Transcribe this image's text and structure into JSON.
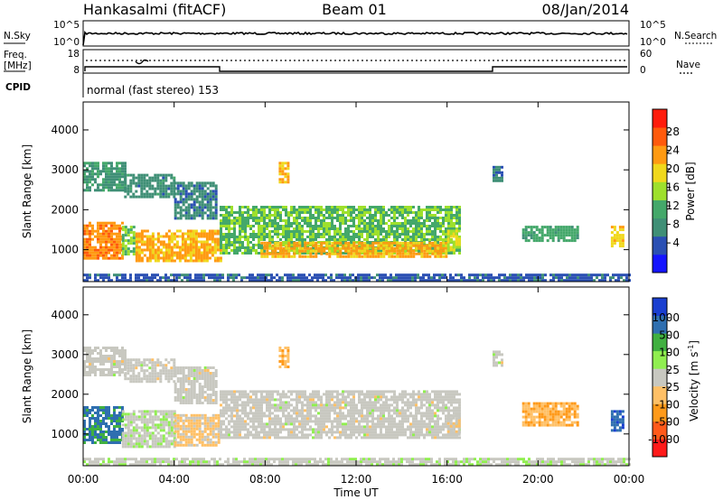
{
  "header": {
    "station": "Hankasalmi (fitACF)",
    "beam": "Beam 01",
    "date": "08/Jan/2014"
  },
  "noise_panel": {
    "left_label": "N.Sky",
    "left_ticks": [
      "10^5",
      "10^0"
    ],
    "right_label": "N.Search",
    "right_ticks": [
      "10^5",
      "10^0"
    ]
  },
  "freq_panel": {
    "left_label_1": "Freq.",
    "left_label_2": "[MHz]",
    "left_ticks": [
      "18",
      "8"
    ],
    "right_label": "Nave",
    "right_ticks": [
      "60",
      "0"
    ]
  },
  "cpid": {
    "label": "CPID",
    "text": "normal (fast stereo) 153"
  },
  "axes": {
    "ylabel": "Slant Range [km]",
    "xlabel": "Time UT"
  },
  "colors": {
    "power_scale": [
      "#1414ff",
      "#2a4fb3",
      "#3f8f76",
      "#44a86a",
      "#9ee02c",
      "#f0d81c",
      "#ff9a12",
      "#ff5a0c",
      "#ff1c0c"
    ],
    "velocity_scale": [
      "#ff1a1a",
      "#ff5a1a",
      "#ff9a1a",
      "#ffc066",
      "#c8c8c0",
      "#90ee50",
      "#40b040",
      "#2f6fb0",
      "#1a3fd0"
    ]
  },
  "chart_data": [
    {
      "type": "heatmap",
      "name": "power_panel",
      "colorbar_label": "Power [dB]",
      "colorbar_ticks": [
        "28",
        "24",
        "20",
        "16",
        "12",
        "8",
        "4"
      ],
      "colorbar_range": [
        0,
        32
      ],
      "x": {
        "label": "Time UT",
        "range_hours": [
          0,
          24
        ],
        "ticks": [
          "00:00",
          "04:00",
          "08:00",
          "12:00",
          "16:00",
          "20:00",
          "00:00"
        ]
      },
      "y": {
        "label": "Slant Range [km]",
        "range": [
          200,
          4700
        ],
        "ticks": [
          "1000",
          "2000",
          "3000",
          "4000"
        ]
      },
      "regions": [
        {
          "t0": 0.0,
          "t1": 1.8,
          "r0": 2500,
          "r1": 3200,
          "value": 10
        },
        {
          "t0": 1.8,
          "t1": 4.0,
          "r0": 2300,
          "r1": 2900,
          "value": 9
        },
        {
          "t0": 4.0,
          "t1": 5.8,
          "r0": 1800,
          "r1": 2700,
          "value": 8
        },
        {
          "t0": 0.0,
          "t1": 1.7,
          "r0": 800,
          "r1": 1700,
          "value": 24
        },
        {
          "t0": 1.7,
          "t1": 2.3,
          "r0": 900,
          "r1": 1600,
          "value": 14
        },
        {
          "t0": 2.3,
          "t1": 6.0,
          "r0": 700,
          "r1": 1500,
          "value": 22
        },
        {
          "t0": 6.0,
          "t1": 16.5,
          "r0": 900,
          "r1": 2100,
          "value": 14
        },
        {
          "t0": 7.8,
          "t1": 16.0,
          "r0": 850,
          "r1": 1200,
          "value": 22
        },
        {
          "t0": 8.6,
          "t1": 9.0,
          "r0": 2700,
          "r1": 3200,
          "value": 22
        },
        {
          "t0": 16.0,
          "t1": 16.5,
          "r0": 1000,
          "r1": 1500,
          "value": 18
        },
        {
          "t0": 18.0,
          "t1": 18.4,
          "r0": 2700,
          "r1": 3100,
          "value": 8
        },
        {
          "t0": 19.3,
          "t1": 21.8,
          "r0": 1200,
          "r1": 1600,
          "value": 12
        },
        {
          "t0": 23.2,
          "t1": 23.7,
          "r0": 1100,
          "r1": 1600,
          "value": 20
        },
        {
          "t0": 0.0,
          "t1": 24.0,
          "r0": 200,
          "r1": 400,
          "value": 6
        }
      ]
    },
    {
      "type": "heatmap",
      "name": "velocity_panel",
      "colorbar_label": "Velocity [m s^-1]",
      "colorbar_ticks": [
        "1000",
        "500",
        "100",
        "25",
        "-25",
        "-100",
        "-500",
        "-1000"
      ],
      "colorbar_range": [
        -1000,
        1000
      ],
      "x": {
        "label": "Time UT",
        "range_hours": [
          0,
          24
        ],
        "ticks": [
          "00:00",
          "04:00",
          "08:00",
          "12:00",
          "16:00",
          "20:00",
          "00:00"
        ]
      },
      "y": {
        "label": "Slant Range [km]",
        "range": [
          200,
          4700
        ],
        "ticks": [
          "1000",
          "2000",
          "3000",
          "4000"
        ]
      },
      "regions": [
        {
          "t0": 0.0,
          "t1": 1.8,
          "r0": 2500,
          "r1": 3200,
          "value": 0
        },
        {
          "t0": 1.8,
          "t1": 4.0,
          "r0": 2300,
          "r1": 2900,
          "value": 0
        },
        {
          "t0": 4.0,
          "t1": 5.8,
          "r0": 1800,
          "r1": 2700,
          "value": 0
        },
        {
          "t0": 0.0,
          "t1": 1.7,
          "r0": 800,
          "r1": 1700,
          "value": 600
        },
        {
          "t0": 1.7,
          "t1": 4.0,
          "r0": 700,
          "r1": 1600,
          "value": 60
        },
        {
          "t0": 4.0,
          "t1": 6.0,
          "r0": 700,
          "r1": 1500,
          "value": -150
        },
        {
          "t0": 6.0,
          "t1": 16.5,
          "r0": 900,
          "r1": 2100,
          "value": 0
        },
        {
          "t0": 8.6,
          "t1": 9.0,
          "r0": 2700,
          "r1": 3200,
          "value": -300
        },
        {
          "t0": 16.0,
          "t1": 16.5,
          "r0": 1000,
          "r1": 1500,
          "value": -60
        },
        {
          "t0": 18.0,
          "t1": 18.4,
          "r0": 2700,
          "r1": 3100,
          "value": 0
        },
        {
          "t0": 19.3,
          "t1": 21.8,
          "r0": 1200,
          "r1": 1800,
          "value": -300
        },
        {
          "t0": 23.2,
          "t1": 23.7,
          "r0": 1100,
          "r1": 1600,
          "value": 700
        },
        {
          "t0": 0.0,
          "t1": 24.0,
          "r0": 200,
          "r1": 400,
          "value": 40
        }
      ]
    }
  ]
}
